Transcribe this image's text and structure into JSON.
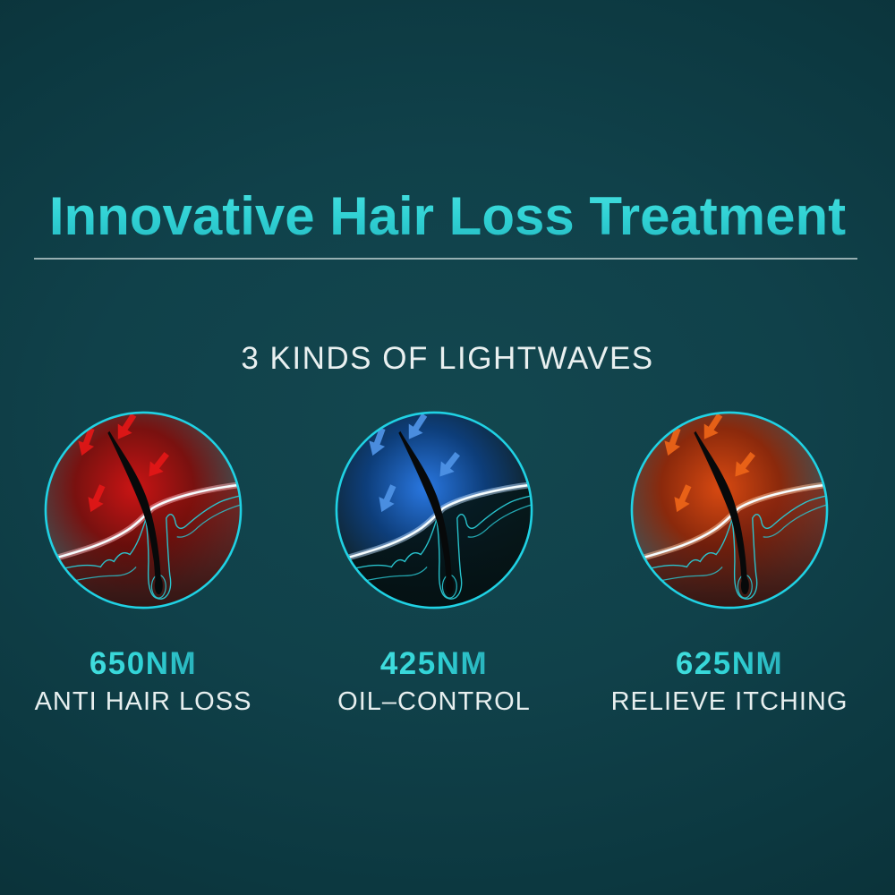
{
  "header": {
    "title": "Innovative Hair Loss Treatment",
    "subtitle": "3 KINDS OF LIGHTWAVES"
  },
  "features": [
    {
      "wavelength": "650NM",
      "label": "ANTI HAIR LOSS",
      "light": "red-lightwave",
      "colors": {
        "edge": "#414c4e",
        "glow1": "#d11111",
        "glow2": "#7c0e0c",
        "belowTop": "rgba(146,18,12,0.55)",
        "belowBottom": "rgba(40,8,6,0.82)",
        "arrow": "#e31717",
        "skinGlow": "#ffb9c0"
      }
    },
    {
      "wavelength": "425NM",
      "label": "OIL–CONTROL",
      "light": "blue-lightwave",
      "colors": {
        "edge": "#10242c",
        "glow1": "#2b7ceb",
        "glow2": "#0d3f7e",
        "belowTop": "rgba(6,24,26,0.90)",
        "belowBottom": "rgba(4,16,18,0.97)",
        "arrow": "#5094e6",
        "skinGlow": "#bfe0ff"
      }
    },
    {
      "wavelength": "625NM",
      "label": "RELIEVE ITCHING",
      "light": "orange-lightwave",
      "colors": {
        "edge": "#454e50",
        "glow1": "#e0490e",
        "glow2": "#8e2708",
        "belowTop": "rgba(150,40,18,0.55)",
        "belowBottom": "rgba(45,10,6,0.85)",
        "arrow": "#ee6518",
        "skinGlow": "#ffc59e"
      }
    }
  ],
  "theme": {
    "background": "#0d3941",
    "accent": "#33d5d6",
    "ring": "#20d2e4",
    "layerLine": "#2acbd6",
    "divider": "#c4d4d4",
    "subtitleColor": "#e9f0f0"
  }
}
